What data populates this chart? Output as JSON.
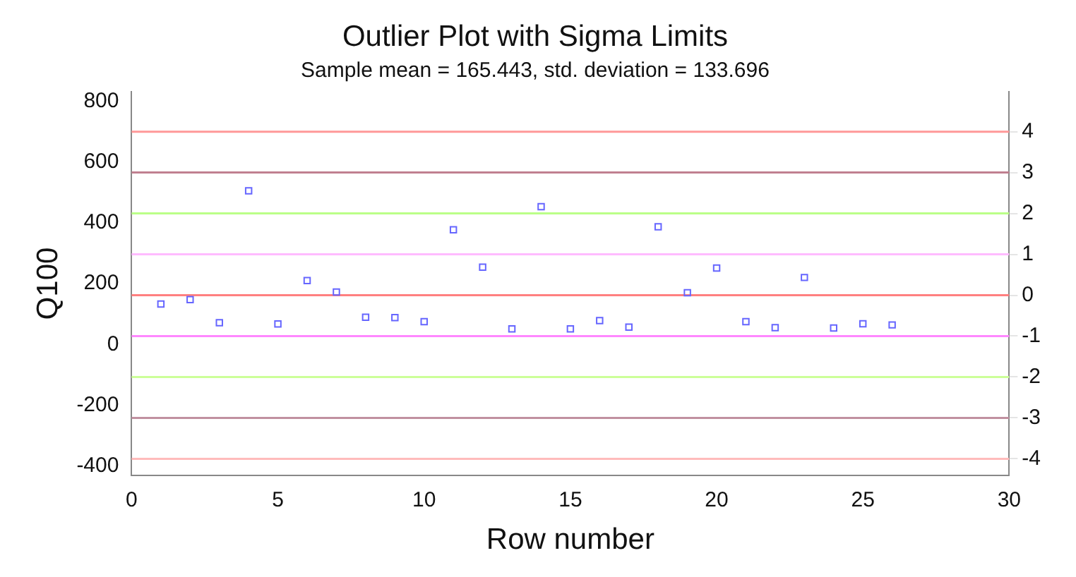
{
  "chart_data": {
    "type": "scatter",
    "title": "Outlier Plot with Sigma Limits",
    "subtitle": "Sample mean = 165.443, std. deviation = 133.696",
    "xlabel": "Row number",
    "ylabel": "Q100",
    "marker": "square",
    "legend": false,
    "grid": false,
    "x": [
      1,
      2,
      3,
      4,
      5,
      6,
      7,
      8,
      9,
      10,
      11,
      12,
      13,
      14,
      15,
      16,
      17,
      18,
      19,
      20,
      21,
      22,
      23,
      24,
      25,
      26
    ],
    "series": [
      {
        "color": "#6666ff",
        "values": [
          133,
          147,
          71,
          505,
          67,
          210,
          172,
          89,
          88,
          75,
          377,
          254,
          51,
          453,
          51,
          78,
          57,
          387,
          170,
          251,
          75,
          55,
          220,
          54,
          68,
          64
        ]
      }
    ],
    "xlim": [
      0,
      30
    ],
    "xticks": [
      0,
      5,
      10,
      15,
      20,
      25,
      30
    ],
    "ylim": [
      -430,
      830
    ],
    "yticks": [
      -400,
      -200,
      0,
      200,
      400,
      600,
      800
    ],
    "y2lim": [
      -4.4,
      4.97
    ],
    "y2ticks": [
      -4,
      -3,
      -2,
      -1,
      0,
      1,
      2,
      3,
      4
    ],
    "ref_lines": [
      {
        "axis": "y2",
        "value": 4,
        "color": "#ff9999"
      },
      {
        "axis": "y2",
        "value": 3,
        "color": "#c08090"
      },
      {
        "axis": "y2",
        "value": 2,
        "color": "#bbff88"
      },
      {
        "axis": "y2",
        "value": 1,
        "color": "#ffbbff"
      },
      {
        "axis": "y2",
        "value": 0,
        "color": "#ff8080"
      },
      {
        "axis": "y2",
        "value": -1,
        "color": "#ff88ff"
      },
      {
        "axis": "y2",
        "value": -2,
        "color": "#ccff99"
      },
      {
        "axis": "y2",
        "value": -3,
        "color": "#c090a0"
      },
      {
        "axis": "y2",
        "value": -4,
        "color": "#ffbbbb"
      }
    ]
  }
}
